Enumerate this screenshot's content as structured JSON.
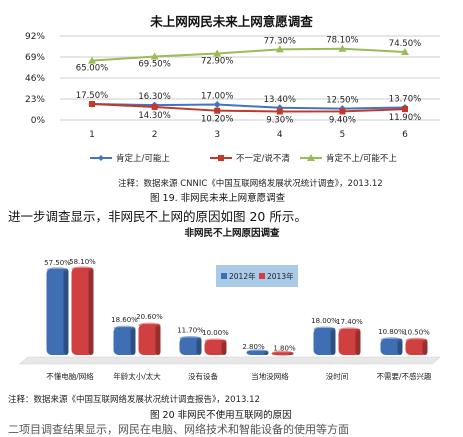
{
  "colors": {
    "blue": "#4472c4",
    "red": "#c0392b",
    "green": "#9bbb59",
    "bar_blue": "#3f6fb3",
    "bar_red": "#d04040",
    "legend_bg": "#a9cbe8"
  },
  "chart_data": [
    {
      "type": "line",
      "title": "未上网网民未来上网意愿调查",
      "x": [
        "1",
        "2",
        "3",
        "4",
        "5",
        "6"
      ],
      "ylim": [
        0,
        92
      ],
      "yticks": [
        "92%",
        "69%",
        "46%",
        "23%",
        "0%"
      ],
      "grid": true,
      "legend_placement": "bottom",
      "series": [
        {
          "name": "肯定上/可能上",
          "values": [
            17.5,
            16.3,
            17.0,
            13.4,
            12.5,
            13.7
          ],
          "labels": [
            "17.50%",
            "16.30%",
            "17.00%",
            "13.40%",
            "12.50%",
            "13.70%"
          ],
          "color": "#4472c4"
        },
        {
          "name": "不一定/说不清",
          "values": [
            17.5,
            14.3,
            10.2,
            9.3,
            9.4,
            11.9
          ],
          "labels": [
            "",
            "14.30%",
            "10.20%",
            "9.30%",
            "9.40%",
            "11.90%"
          ],
          "color": "#c0392b"
        },
        {
          "name": "肯定不上/可能不上",
          "values": [
            65.0,
            69.5,
            72.9,
            77.3,
            78.1,
            74.5
          ],
          "labels": [
            "65.00%",
            "69.50%",
            "72.90%",
            "77.30%",
            "78.10%",
            "74.50%"
          ],
          "color": "#9bbb59"
        }
      ]
    },
    {
      "type": "bar",
      "title": "非网民不上网原因调查",
      "categories": [
        "不懂电脑/网络",
        "年龄太小/太大",
        "没有设备",
        "当地没网络",
        "没时间",
        "不需要/不感兴趣"
      ],
      "legend_placement": "top-center",
      "series": [
        {
          "name": "2012年",
          "values": [
            57.5,
            18.6,
            11.7,
            2.8,
            18.0,
            10.8
          ],
          "labels": [
            "57.50%",
            "18.60%",
            "11.70%",
            "2.80%",
            "18.00%",
            "10.80%"
          ],
          "color": "#3f6fb3"
        },
        {
          "name": "2013年",
          "values": [
            58.1,
            20.6,
            10.0,
            1.8,
            17.4,
            10.5
          ],
          "labels": [
            "58.10%",
            "20.60%",
            "10.00%",
            "1.80%",
            "17.40%",
            "10.50%"
          ],
          "color": "#d04040"
        }
      ]
    }
  ],
  "doc": {
    "note1": "注释：数据来源 CNNIC《中国互联网络发展状况统计调查》，2013.12",
    "fig1": "图 19. 非网民未来上网意愿调查",
    "para": "进一步调查显示，非网民不上网的原因如图 20 所示。",
    "note2": "注释：数据来源《中国互联网络发展状况统计调查报告》，2013.12",
    "fig2": "图 20 非网民不使用互联网的原因",
    "trail": "二项目调查结果显示，网民在电脑、网络技术和智能设备的使用等方面"
  }
}
